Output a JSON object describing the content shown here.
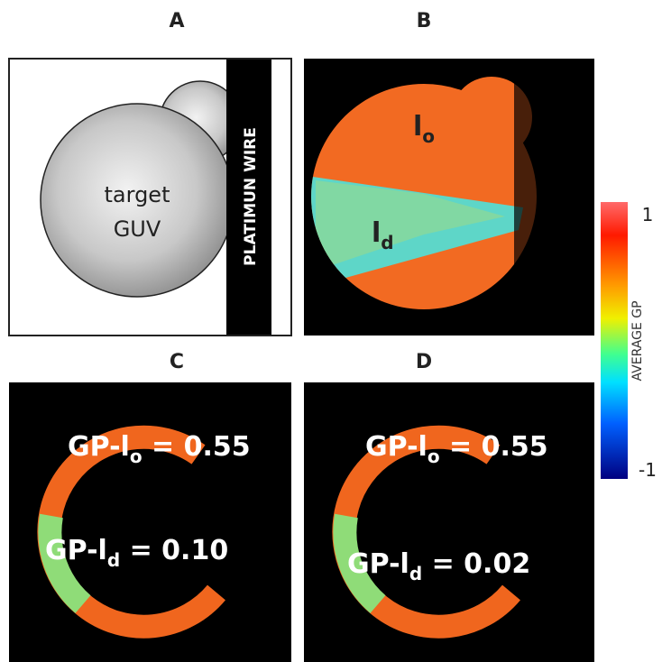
{
  "panels": [
    {
      "label": "A",
      "texts": [
        "target",
        "GUV"
      ],
      "wire": "PLATIMUN WIRE"
    },
    {
      "label": "B",
      "annotations": [
        {
          "main": "l",
          "sub": "o"
        },
        {
          "main": "l",
          "sub": "d"
        }
      ]
    },
    {
      "label": "C",
      "annotations": [
        {
          "main": "GP-l",
          "sub": "o",
          "rest": " = 0.55"
        },
        {
          "main": "GP-l",
          "sub": "d",
          "rest": " = 0.10"
        }
      ]
    },
    {
      "label": "D",
      "annotations": [
        {
          "main": "GP-l",
          "sub": "o",
          "rest": " = 0.55"
        },
        {
          "main": "GP-l",
          "sub": "d",
          "rest": " = 0.02"
        }
      ]
    }
  ],
  "colorbar": {
    "label": "AVERAGE GP",
    "max": 1,
    "min": -1
  }
}
